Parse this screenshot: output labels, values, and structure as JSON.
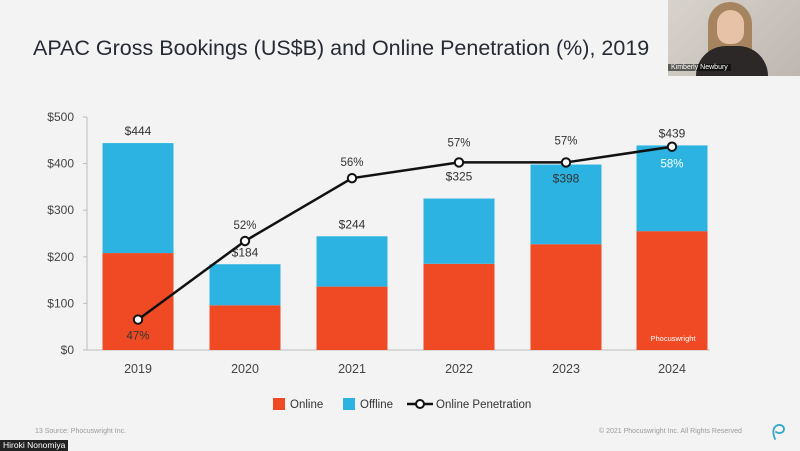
{
  "slide": {
    "title": "APAC Gross Bookings (US$B) and Online Penetration (%), 2019",
    "watermark": "Phocuswright",
    "footer_left": "13    Source: Phocuswright Inc.",
    "footer_right": "© 2021 Phocuswright Inc. All Rights Reserved",
    "brand_icon": "phocuswright-p-icon"
  },
  "webcam": {
    "participant_name": "Kimberly Newbury"
  },
  "presenter": {
    "name": "Hiroki Nonomiya"
  },
  "colors": {
    "online": "#f04a24",
    "offline": "#2cb3e1",
    "line": "#111111",
    "brand": "#35a6c8"
  },
  "chart_data": {
    "type": "bar",
    "stacked": true,
    "categories": [
      "2019",
      "2020",
      "2021",
      "2022",
      "2023",
      "2024"
    ],
    "series": [
      {
        "name": "Online",
        "values": [
          208,
          96,
          136,
          185,
          227,
          255
        ]
      },
      {
        "name": "Offline",
        "values": [
          236,
          88,
          108,
          140,
          171,
          184
        ]
      }
    ],
    "totals": [
      444,
      184,
      244,
      325,
      398,
      439
    ],
    "total_labels": [
      "$444",
      "$184",
      "$244",
      "$325",
      "$398",
      "$439"
    ],
    "line_series": {
      "name": "Online Penetration",
      "values": [
        47,
        52,
        56,
        57,
        57,
        58
      ],
      "labels": [
        "47%",
        "52%",
        "56%",
        "57%",
        "57%",
        "58%"
      ]
    },
    "y_ticks": [
      "$0",
      "$100",
      "$200",
      "$300",
      "$400",
      "$500"
    ],
    "y_tick_values": [
      0,
      100,
      200,
      300,
      400,
      500
    ],
    "ylim": [
      0,
      500
    ],
    "grid": false,
    "legend_position": "bottom"
  }
}
